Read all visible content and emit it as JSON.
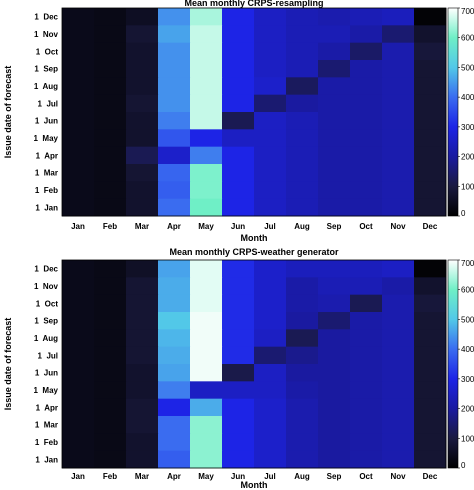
{
  "colormap": {
    "stops": [
      [
        0,
        "#000000"
      ],
      [
        100,
        "#1a1a40"
      ],
      [
        200,
        "#1a1aa0"
      ],
      [
        300,
        "#1d24e6"
      ],
      [
        400,
        "#3a6cf0"
      ],
      [
        500,
        "#52c8e8"
      ],
      [
        600,
        "#6fefc6"
      ],
      [
        700,
        "#ffffff"
      ]
    ]
  },
  "chart_data": [
    {
      "type": "heatmap",
      "title": "Mean monthly CRPS-resampling",
      "xlabel": "Month",
      "ylabel": "Issue date of forecast",
      "x_categories": [
        "Jan",
        "Feb",
        "Mar",
        "Apr",
        "May",
        "Jun",
        "Jul",
        "Aug",
        "Sep",
        "Oct",
        "Nov",
        "Dec"
      ],
      "y_categories": [
        "1  Dec",
        "1  Nov",
        "1  Oct",
        "1  Sep",
        "1  Aug",
        "1  Jul",
        "1  Jun",
        "1  May",
        "1  Apr",
        "1  Mar",
        "1  Feb",
        "1  Jan"
      ],
      "clim": [
        0,
        700
      ],
      "colorbar_ticks": [
        0,
        100,
        200,
        300,
        400,
        500,
        600,
        700
      ],
      "values": [
        [
          40,
          35,
          55,
          440,
          640,
          300,
          250,
          230,
          220,
          230,
          240,
          10
        ],
        [
          40,
          35,
          80,
          460,
          660,
          300,
          250,
          230,
          230,
          210,
          150,
          70
        ],
        [
          40,
          35,
          70,
          440,
          660,
          300,
          250,
          230,
          210,
          140,
          220,
          90
        ],
        [
          40,
          35,
          70,
          440,
          660,
          300,
          250,
          230,
          150,
          210,
          220,
          80
        ],
        [
          40,
          35,
          70,
          440,
          660,
          300,
          260,
          130,
          210,
          210,
          220,
          80
        ],
        [
          40,
          35,
          80,
          440,
          660,
          300,
          150,
          200,
          210,
          210,
          220,
          80
        ],
        [
          40,
          35,
          70,
          420,
          660,
          120,
          250,
          230,
          210,
          210,
          220,
          80
        ],
        [
          40,
          35,
          70,
          370,
          300,
          250,
          250,
          230,
          210,
          210,
          220,
          80
        ],
        [
          40,
          35,
          120,
          260,
          420,
          300,
          250,
          230,
          210,
          210,
          220,
          80
        ],
        [
          40,
          35,
          80,
          390,
          610,
          300,
          250,
          230,
          210,
          210,
          220,
          80
        ],
        [
          40,
          35,
          70,
          380,
          610,
          300,
          250,
          230,
          210,
          210,
          220,
          80
        ],
        [
          40,
          35,
          70,
          400,
          600,
          300,
          250,
          230,
          210,
          210,
          220,
          80
        ]
      ]
    },
    {
      "type": "heatmap",
      "title": "Mean monthly CRPS-weather generator",
      "xlabel": "Month",
      "ylabel": "Issue date of forecast",
      "x_categories": [
        "Jan",
        "Feb",
        "Mar",
        "Apr",
        "May",
        "Jun",
        "Jul",
        "Aug",
        "Sep",
        "Oct",
        "Nov",
        "Dec"
      ],
      "y_categories": [
        "1  Dec",
        "1  Nov",
        "1  Oct",
        "1  Sep",
        "1  Aug",
        "1  Jul",
        "1  Jun",
        "1  May",
        "1  Apr",
        "1  Mar",
        "1  Feb",
        "1  Jan"
      ],
      "clim": [
        0,
        700
      ],
      "colorbar_ticks": [
        0,
        100,
        200,
        300,
        400,
        500,
        600,
        700
      ],
      "values": [
        [
          40,
          35,
          60,
          460,
          680,
          310,
          260,
          240,
          240,
          240,
          250,
          10
        ],
        [
          40,
          35,
          80,
          470,
          680,
          310,
          260,
          210,
          230,
          230,
          210,
          70
        ],
        [
          40,
          35,
          80,
          470,
          680,
          310,
          260,
          210,
          220,
          120,
          220,
          90
        ],
        [
          40,
          35,
          80,
          500,
          690,
          310,
          260,
          200,
          150,
          210,
          220,
          80
        ],
        [
          40,
          35,
          80,
          480,
          690,
          310,
          250,
          120,
          200,
          210,
          220,
          80
        ],
        [
          40,
          35,
          80,
          470,
          690,
          310,
          150,
          180,
          200,
          210,
          220,
          80
        ],
        [
          40,
          35,
          70,
          460,
          690,
          110,
          250,
          200,
          200,
          210,
          220,
          80
        ],
        [
          40,
          35,
          70,
          420,
          250,
          250,
          250,
          210,
          200,
          210,
          220,
          80
        ],
        [
          40,
          35,
          80,
          300,
          470,
          300,
          260,
          220,
          200,
          210,
          220,
          80
        ],
        [
          40,
          35,
          80,
          400,
          620,
          300,
          260,
          220,
          200,
          210,
          220,
          80
        ],
        [
          40,
          35,
          70,
          400,
          620,
          300,
          260,
          220,
          200,
          210,
          220,
          80
        ],
        [
          40,
          35,
          70,
          380,
          620,
          300,
          260,
          220,
          200,
          210,
          220,
          80
        ]
      ]
    }
  ]
}
